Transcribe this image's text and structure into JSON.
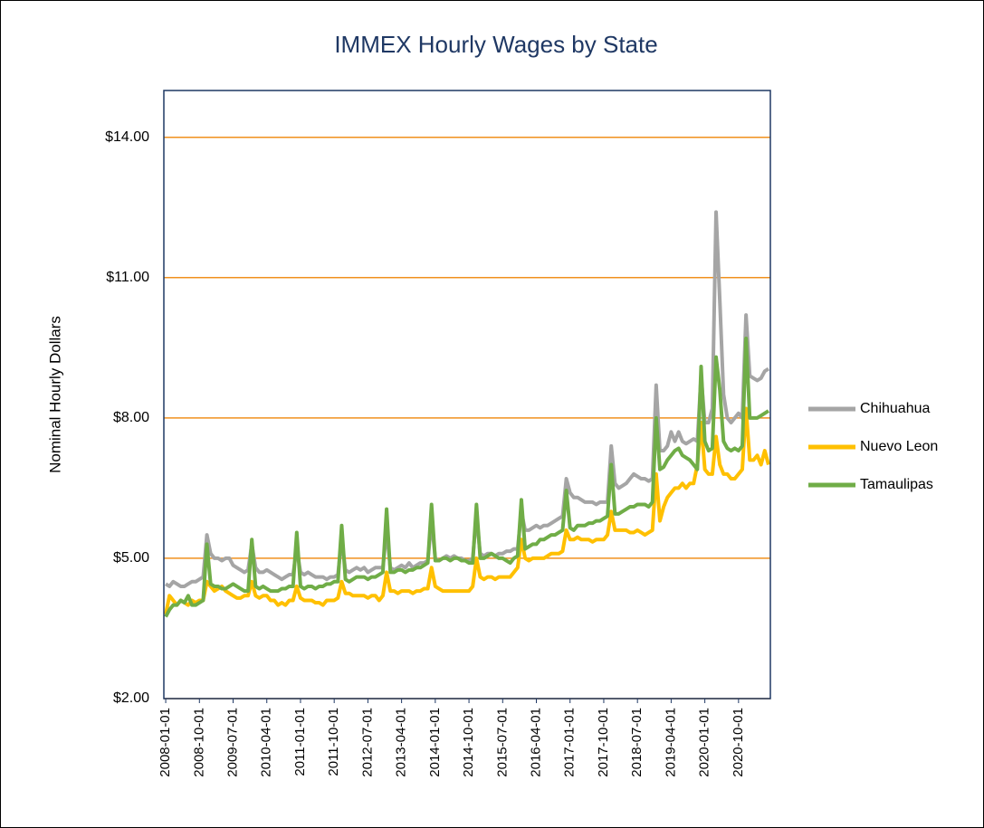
{
  "chart_data": {
    "type": "line",
    "title": "IMMEX Hourly Wages by State",
    "y_label": "Nominal Hourly Dollars",
    "categories": [
      "2008-01-01",
      null,
      null,
      null,
      null,
      null,
      null,
      null,
      null,
      "2008-10-01",
      null,
      null,
      null,
      null,
      null,
      null,
      null,
      null,
      "2009-07-01",
      null,
      null,
      null,
      null,
      null,
      null,
      null,
      null,
      "2010-04-01",
      null,
      null,
      null,
      null,
      null,
      null,
      null,
      null,
      "2011-01-01",
      null,
      null,
      null,
      null,
      null,
      null,
      null,
      null,
      "2011-10-01",
      null,
      null,
      null,
      null,
      null,
      null,
      null,
      null,
      "2012-07-01",
      null,
      null,
      null,
      null,
      null,
      null,
      null,
      null,
      "2013-04-01",
      null,
      null,
      null,
      null,
      null,
      null,
      null,
      null,
      "2014-01-01",
      null,
      null,
      null,
      null,
      null,
      null,
      null,
      null,
      "2014-10-01",
      null,
      null,
      null,
      null,
      null,
      null,
      null,
      null,
      "2015-07-01",
      null,
      null,
      null,
      null,
      null,
      null,
      null,
      null,
      "2016-04-01",
      null,
      null,
      null,
      null,
      null,
      null,
      null,
      null,
      "2017-01-01",
      null,
      null,
      null,
      null,
      null,
      null,
      null,
      null,
      "2017-10-01",
      null,
      null,
      null,
      null,
      null,
      null,
      null,
      null,
      "2018-07-01",
      null,
      null,
      null,
      null,
      null,
      null,
      null,
      null,
      "2019-04-01",
      null,
      null,
      null,
      null,
      null,
      null,
      null,
      null,
      "2020-01-01",
      null,
      null,
      null,
      null,
      null,
      null,
      null,
      null,
      "2020-10-01",
      null,
      null,
      null,
      null,
      null,
      null,
      null,
      null
    ],
    "series": [
      {
        "name": "Chihuahua",
        "color": "#a5a5a5",
        "values": [
          4.45,
          4.4,
          4.5,
          4.45,
          4.4,
          4.4,
          4.45,
          4.5,
          4.5,
          4.55,
          4.6,
          5.5,
          5.1,
          5.0,
          5.0,
          4.95,
          5.0,
          5.0,
          4.85,
          4.8,
          4.75,
          4.7,
          4.75,
          5.3,
          4.8,
          4.7,
          4.7,
          4.75,
          4.7,
          4.65,
          4.6,
          4.55,
          4.6,
          4.65,
          4.65,
          5.2,
          4.7,
          4.65,
          4.7,
          4.65,
          4.6,
          4.6,
          4.6,
          4.55,
          4.6,
          4.6,
          4.65,
          5.4,
          4.75,
          4.7,
          4.75,
          4.8,
          4.75,
          4.8,
          4.7,
          4.75,
          4.8,
          4.8,
          4.8,
          5.6,
          4.8,
          4.75,
          4.8,
          4.85,
          4.8,
          4.9,
          4.8,
          4.85,
          4.9,
          4.9,
          4.95,
          5.8,
          5.0,
          4.95,
          5.0,
          5.05,
          5.0,
          5.05,
          5.0,
          5.0,
          4.95,
          4.95,
          5.0,
          5.9,
          5.1,
          5.05,
          5.1,
          5.1,
          5.05,
          5.1,
          5.1,
          5.15,
          5.15,
          5.2,
          5.2,
          6.0,
          5.6,
          5.6,
          5.65,
          5.7,
          5.65,
          5.7,
          5.7,
          5.75,
          5.8,
          5.85,
          5.9,
          6.7,
          6.4,
          6.3,
          6.3,
          6.25,
          6.2,
          6.2,
          6.2,
          6.15,
          6.2,
          6.2,
          6.2,
          7.4,
          6.6,
          6.5,
          6.55,
          6.6,
          6.7,
          6.8,
          6.75,
          6.7,
          6.7,
          6.65,
          6.7,
          8.7,
          7.3,
          7.3,
          7.4,
          7.7,
          7.5,
          7.7,
          7.5,
          7.45,
          7.5,
          7.55,
          7.5,
          8.9,
          7.9,
          7.9,
          8.2,
          12.4,
          10.5,
          8.5,
          8.0,
          7.9,
          8.0,
          8.1,
          8.0,
          10.2,
          8.9,
          8.85,
          8.8,
          8.85,
          9.0,
          9.05
        ]
      },
      {
        "name": "Nuevo Leon",
        "color": "#ffc000",
        "values": [
          3.8,
          4.2,
          4.1,
          4.0,
          4.1,
          4.05,
          4.0,
          4.1,
          4.05,
          4.1,
          4.1,
          4.5,
          4.4,
          4.3,
          4.35,
          4.4,
          4.3,
          4.25,
          4.2,
          4.15,
          4.15,
          4.2,
          4.2,
          4.5,
          4.2,
          4.15,
          4.2,
          4.2,
          4.1,
          4.1,
          4.0,
          4.05,
          4.0,
          4.1,
          4.1,
          4.4,
          4.15,
          4.1,
          4.1,
          4.1,
          4.05,
          4.05,
          4.0,
          4.1,
          4.1,
          4.1,
          4.15,
          4.5,
          4.25,
          4.25,
          4.2,
          4.2,
          4.2,
          4.2,
          4.15,
          4.2,
          4.2,
          4.1,
          4.2,
          4.7,
          4.3,
          4.3,
          4.25,
          4.3,
          4.3,
          4.3,
          4.25,
          4.3,
          4.3,
          4.35,
          4.35,
          4.8,
          4.4,
          4.35,
          4.3,
          4.3,
          4.3,
          4.3,
          4.3,
          4.3,
          4.3,
          4.3,
          4.4,
          5.0,
          4.6,
          4.55,
          4.6,
          4.6,
          4.55,
          4.6,
          4.6,
          4.6,
          4.6,
          4.7,
          4.8,
          5.4,
          5.0,
          4.95,
          5.0,
          5.0,
          5.0,
          5.0,
          5.05,
          5.1,
          5.1,
          5.1,
          5.15,
          5.6,
          5.4,
          5.4,
          5.45,
          5.4,
          5.4,
          5.4,
          5.35,
          5.4,
          5.4,
          5.4,
          5.5,
          6.0,
          5.6,
          5.6,
          5.6,
          5.6,
          5.55,
          5.55,
          5.6,
          5.55,
          5.5,
          5.55,
          5.6,
          6.8,
          5.8,
          6.1,
          6.3,
          6.4,
          6.5,
          6.5,
          6.6,
          6.5,
          6.6,
          6.6,
          7.0,
          7.9,
          6.9,
          6.8,
          6.8,
          7.6,
          7.0,
          6.8,
          6.8,
          6.7,
          6.7,
          6.8,
          6.9,
          8.2,
          7.1,
          7.1,
          7.2,
          7.0,
          7.3,
          7.0
        ]
      },
      {
        "name": "Tamaulipas",
        "color": "#70ad47",
        "values": [
          3.75,
          3.9,
          4.0,
          4.0,
          4.1,
          4.05,
          4.2,
          4.0,
          4.0,
          4.05,
          4.1,
          5.3,
          4.45,
          4.4,
          4.4,
          4.35,
          4.35,
          4.4,
          4.45,
          4.4,
          4.35,
          4.3,
          4.3,
          5.4,
          4.4,
          4.35,
          4.4,
          4.35,
          4.3,
          4.3,
          4.3,
          4.35,
          4.35,
          4.4,
          4.4,
          5.55,
          4.4,
          4.35,
          4.4,
          4.4,
          4.35,
          4.4,
          4.4,
          4.45,
          4.45,
          4.5,
          4.5,
          5.7,
          4.55,
          4.5,
          4.55,
          4.6,
          4.6,
          4.6,
          4.55,
          4.6,
          4.6,
          4.65,
          4.7,
          6.05,
          4.7,
          4.7,
          4.75,
          4.75,
          4.7,
          4.75,
          4.75,
          4.8,
          4.8,
          4.85,
          4.9,
          6.15,
          4.95,
          4.95,
          5.0,
          5.0,
          4.95,
          5.0,
          5.0,
          4.95,
          4.95,
          4.9,
          4.9,
          6.15,
          5.0,
          5.0,
          5.05,
          5.1,
          5.05,
          5.0,
          5.0,
          4.95,
          4.9,
          5.0,
          5.05,
          6.25,
          5.2,
          5.25,
          5.3,
          5.3,
          5.4,
          5.4,
          5.45,
          5.5,
          5.5,
          5.55,
          5.6,
          6.45,
          5.65,
          5.6,
          5.7,
          5.7,
          5.7,
          5.75,
          5.75,
          5.8,
          5.8,
          5.85,
          5.9,
          7.0,
          5.95,
          5.95,
          6.0,
          6.05,
          6.1,
          6.1,
          6.15,
          6.15,
          6.15,
          6.1,
          6.2,
          8.0,
          6.9,
          6.95,
          7.1,
          7.2,
          7.3,
          7.35,
          7.2,
          7.15,
          7.1,
          7.0,
          6.9,
          9.1,
          7.5,
          7.3,
          7.35,
          9.3,
          8.6,
          7.5,
          7.35,
          7.3,
          7.35,
          7.3,
          7.4,
          9.7,
          8.0,
          8.0,
          8.0,
          8.05,
          8.1,
          8.15
        ]
      }
    ],
    "ylim": [
      2,
      15
    ],
    "yticks": [
      {
        "value": 2,
        "label": "$2.00"
      },
      {
        "value": 5,
        "label": "$5.00"
      },
      {
        "value": 8,
        "label": "$8.00"
      },
      {
        "value": 11,
        "label": "$11.00"
      },
      {
        "value": 14,
        "label": "$14.00"
      }
    ],
    "grid": true,
    "grid_color": "#f0901e",
    "legend": "right"
  }
}
